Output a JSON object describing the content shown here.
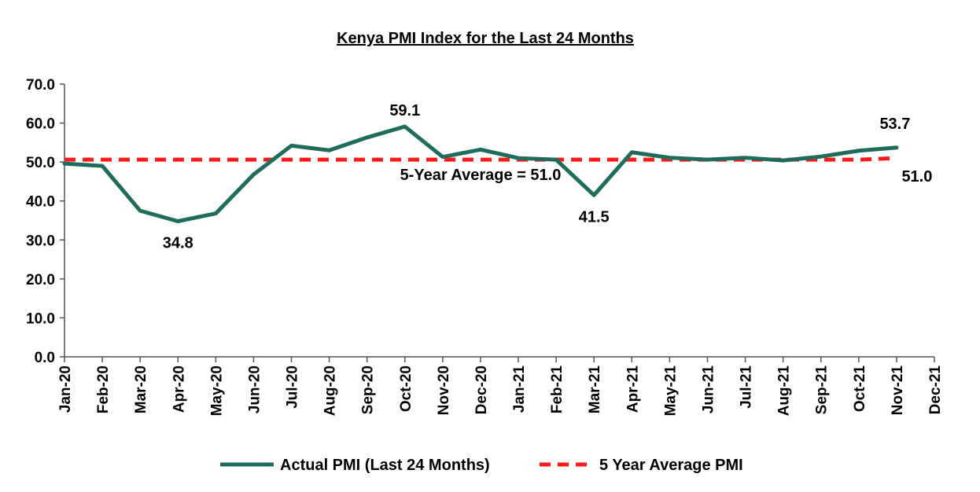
{
  "chart_data": {
    "type": "line",
    "title": "Kenya PMI Index for the Last 24 Months",
    "categories": [
      "Jan-20",
      "Feb-20",
      "Mar-20",
      "Apr-20",
      "May-20",
      "Jun-20",
      "Jul-20",
      "Aug-20",
      "Sep-20",
      "Oct-20",
      "Nov-20",
      "Dec-20",
      "Jan-21",
      "Feb-21",
      "Mar-21",
      "Apr-21",
      "May-21",
      "Jun-21",
      "Jul-21",
      "Aug-21",
      "Sep-21",
      "Oct-21",
      "Nov-21",
      "Dec-21"
    ],
    "y_ticks": [
      "0.0",
      "10.0",
      "20.0",
      "30.0",
      "40.0",
      "50.0",
      "60.0",
      "70.0"
    ],
    "ylim": [
      0,
      70
    ],
    "series": [
      {
        "name": "Actual PMI (Last 24 Months)",
        "color": "#1f6b5c",
        "style": "solid",
        "values": [
          49.6,
          49.0,
          37.5,
          34.8,
          36.8,
          46.8,
          54.2,
          53.0,
          56.3,
          59.1,
          51.3,
          53.2,
          51.0,
          50.6,
          41.5,
          52.5,
          51.1,
          50.6,
          51.1,
          50.4,
          51.4,
          52.9,
          53.7,
          null
        ]
      },
      {
        "name": "5 Year Average PMI",
        "color": "#ff1a1a",
        "style": "dashed",
        "values": [
          50.6,
          50.6,
          50.6,
          50.6,
          50.6,
          50.6,
          50.6,
          50.6,
          50.6,
          50.6,
          50.6,
          50.6,
          50.6,
          50.6,
          50.6,
          50.6,
          50.6,
          50.6,
          50.6,
          50.6,
          50.6,
          50.6,
          51.0,
          null
        ]
      }
    ],
    "annotations": [
      {
        "text": "34.8",
        "category": "Apr-20",
        "value": 34.8,
        "placement": "below"
      },
      {
        "text": "59.1",
        "category": "Oct-20",
        "value": 59.1,
        "placement": "above"
      },
      {
        "text": "41.5",
        "category": "Mar-21",
        "value": 41.5,
        "placement": "below"
      },
      {
        "text": "53.7",
        "category": "Nov-21",
        "value": 53.7,
        "placement": "above-left"
      },
      {
        "text": "51.0",
        "category": "Nov-21",
        "value": 51.0,
        "placement": "below-right"
      },
      {
        "text": "5-Year Average = 51.0",
        "category": "Dec-20",
        "value": 50.6,
        "placement": "below"
      }
    ],
    "legend_position": "bottom"
  }
}
